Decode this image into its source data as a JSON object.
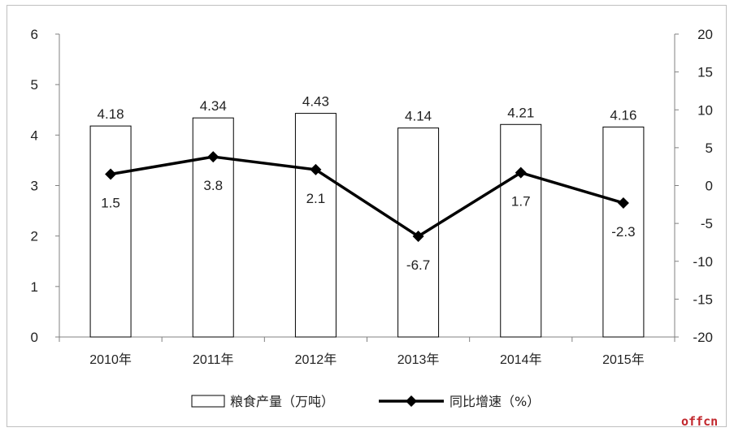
{
  "chart_data": {
    "type": "bar",
    "categories": [
      "2010年",
      "2011年",
      "2012年",
      "2013年",
      "2014年",
      "2015年"
    ],
    "series": [
      {
        "name": "粮食产量（万吨）",
        "type": "bar",
        "axis": "left",
        "values": [
          4.18,
          4.34,
          4.43,
          4.14,
          4.21,
          4.16
        ],
        "labels": [
          "4.18",
          "4.34",
          "4.43",
          "4.14",
          "4.21",
          "4.16"
        ]
      },
      {
        "name": "同比增速（%）",
        "type": "line",
        "axis": "right",
        "values": [
          1.5,
          3.8,
          2.1,
          -6.7,
          1.7,
          -2.3
        ],
        "labels": [
          "1.5",
          "3.8",
          "2.1",
          "-6.7",
          "1.7",
          "-2.3"
        ]
      }
    ],
    "y_left": {
      "range": [
        0,
        6
      ],
      "ticks": [
        "0",
        "1",
        "2",
        "3",
        "4",
        "5",
        "6"
      ]
    },
    "y_right": {
      "range": [
        -20,
        20
      ],
      "ticks": [
        "-20",
        "-15",
        "-10",
        "-5",
        "0",
        "5",
        "10",
        "15",
        "20"
      ]
    },
    "grid": false,
    "legend_position": "bottom",
    "colors": {
      "bar_fill": "#ffffff",
      "bar_stroke": "#000000",
      "line": "#000000",
      "axis": "#808080"
    }
  },
  "watermark": "offcn"
}
